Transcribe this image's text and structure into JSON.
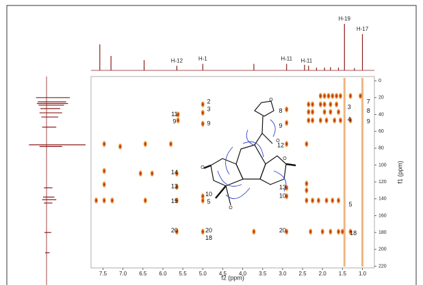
{
  "chart_data": {
    "type": "hmbc",
    "x_label": "f2 (ppm)",
    "y_label": "f1 (ppm)",
    "xlim": [
      7.8,
      0.7
    ],
    "ylim": [
      -5,
      222
    ],
    "xticks": [
      7.5,
      {
        "value": 7,
        "label": "7.0"
      },
      6.5,
      {
        "value": 6,
        "label": "6.0"
      },
      5.5,
      {
        "value": 5,
        "label": "5.0"
      },
      4.5,
      {
        "value": 4,
        "label": "4.0"
      },
      3.5,
      {
        "value": 3,
        "label": "3.0"
      },
      2.5,
      {
        "value": 2,
        "label": "2.0"
      },
      1.5,
      {
        "value": 1,
        "label": "1.0"
      }
    ],
    "yticks": [
      0,
      20,
      40,
      60,
      80,
      100,
      120,
      140,
      160,
      180,
      200,
      220
    ],
    "peak_color": "#e07a1a",
    "spectrum_color": "#8b1a1a",
    "cross_peaks": {
      "x": [
        2.05,
        1.95,
        1.85,
        1.75,
        1.65,
        1.55,
        1.3,
        1.05,
        2.35,
        2.25,
        2.05,
        1.95,
        1.8,
        1.65,
        2.35,
        2.25,
        1.95,
        1.8,
        1.6,
        2.35,
        2.25,
        2.05,
        1.9,
        1.7,
        1.55,
        1.3,
        2.9,
        2.9,
        2.9,
        2.9,
        2.9,
        2.4,
        2.4,
        2.4,
        2.4,
        2.25,
        7.67,
        7.47,
        7.27,
        6.44,
        5.65,
        5.0,
        2.1,
        1.9,
        1.75,
        1.6,
        5.65,
        5.0,
        3.72,
        2.9,
        2.3,
        2.0,
        1.8,
        1.6,
        1.5,
        1.3,
        7.47,
        7.47,
        6.56,
        6.27,
        5.65,
        5.65,
        5.0,
        7.47,
        7.07,
        6.44,
        5.8,
        5.62,
        5.62,
        5.0,
        5.0,
        5.0
      ],
      "y": [
        18,
        18,
        18,
        18,
        18,
        18,
        18,
        18,
        28,
        28,
        28,
        28,
        28,
        28,
        37,
        37,
        37,
        37,
        37,
        47,
        47,
        47,
        47,
        47,
        47,
        47,
        34,
        50,
        75,
        127,
        137,
        75,
        122,
        130,
        142,
        142,
        142,
        142,
        142,
        142,
        142,
        142,
        142,
        142,
        142,
        142,
        179,
        179,
        179,
        179,
        179,
        179,
        179,
        179,
        179,
        179,
        107,
        123,
        110,
        110,
        110,
        126,
        137,
        75,
        78,
        75,
        75,
        40,
        47,
        28,
        38,
        51
      ]
    },
    "streaks": [
      1.45,
      1.0
    ],
    "top_spectrum": {
      "x": [
        7.58,
        7.3,
        6.47,
        5.65,
        5.0,
        3.72,
        2.9,
        2.45,
        2.35,
        2.15,
        1.95,
        1.8,
        1.6,
        1.45,
        1.2,
        1.0
      ],
      "heights": [
        56,
        31,
        22,
        10,
        14,
        14,
        14,
        12,
        10,
        6,
        6,
        7,
        6,
        100,
        5,
        78
      ]
    },
    "top_labels": [
      {
        "text": "H-12",
        "x": 5.65
      },
      {
        "text": "H-1",
        "x": 5.0
      },
      {
        "text": "H-11",
        "x": 2.9
      },
      {
        "text": "H-11",
        "x": 2.4
      },
      {
        "text": "H-19",
        "x": 1.45
      },
      {
        "text": "H-17",
        "x": 1.0
      }
    ],
    "left_spectrum": {
      "y": [
        20,
        25,
        27,
        29,
        33,
        38,
        43,
        55,
        76,
        78,
        127,
        138,
        141,
        145,
        180,
        204
      ],
      "lengths": [
        60,
        50,
        55,
        45,
        35,
        40,
        30,
        25,
        100,
        40,
        15,
        20,
        25,
        15,
        12,
        8
      ]
    },
    "annotations": [
      {
        "text": "2",
        "x": 4.85,
        "y": 25
      },
      {
        "text": "3",
        "x": 4.85,
        "y": 34
      },
      {
        "text": "11",
        "x": 5.71,
        "y": 40
      },
      {
        "text": "9",
        "x": 5.71,
        "y": 48.5
      },
      {
        "text": "9",
        "x": 4.85,
        "y": 51
      },
      {
        "text": "8",
        "x": 3.05,
        "y": 36
      },
      {
        "text": "9",
        "x": 3.05,
        "y": 54
      },
      {
        "text": "12",
        "x": 3.05,
        "y": 77
      },
      {
        "text": "14",
        "x": 5.71,
        "y": 109
      },
      {
        "text": "13",
        "x": 5.71,
        "y": 125.5
      },
      {
        "text": "15",
        "x": 5.71,
        "y": 143
      },
      {
        "text": "10",
        "x": 4.85,
        "y": 135
      },
      {
        "text": "5",
        "x": 4.85,
        "y": 144
      },
      {
        "text": "13",
        "x": 3.0,
        "y": 127
      },
      {
        "text": "10",
        "x": 3.0,
        "y": 137
      },
      {
        "text": "20",
        "x": 5.71,
        "y": 178
      },
      {
        "text": "20",
        "x": 4.85,
        "y": 178
      },
      {
        "text": "18",
        "x": 4.85,
        "y": 187
      },
      {
        "text": "20",
        "x": 3.0,
        "y": 178
      },
      {
        "text": "18",
        "x": 1.23,
        "y": 181
      },
      {
        "text": "5",
        "x": 1.3,
        "y": 147
      },
      {
        "text": "3",
        "x": 1.33,
        "y": 31.5
      },
      {
        "text": "4",
        "x": 1.33,
        "y": 46
      },
      {
        "text": "7",
        "x": 0.85,
        "y": 25
      },
      {
        "text": "8",
        "x": 0.85,
        "y": 36
      },
      {
        "text": "9",
        "x": 0.85,
        "y": 48.5
      }
    ],
    "structure_atoms": [
      "O",
      "O",
      "O",
      "O",
      "O"
    ]
  }
}
